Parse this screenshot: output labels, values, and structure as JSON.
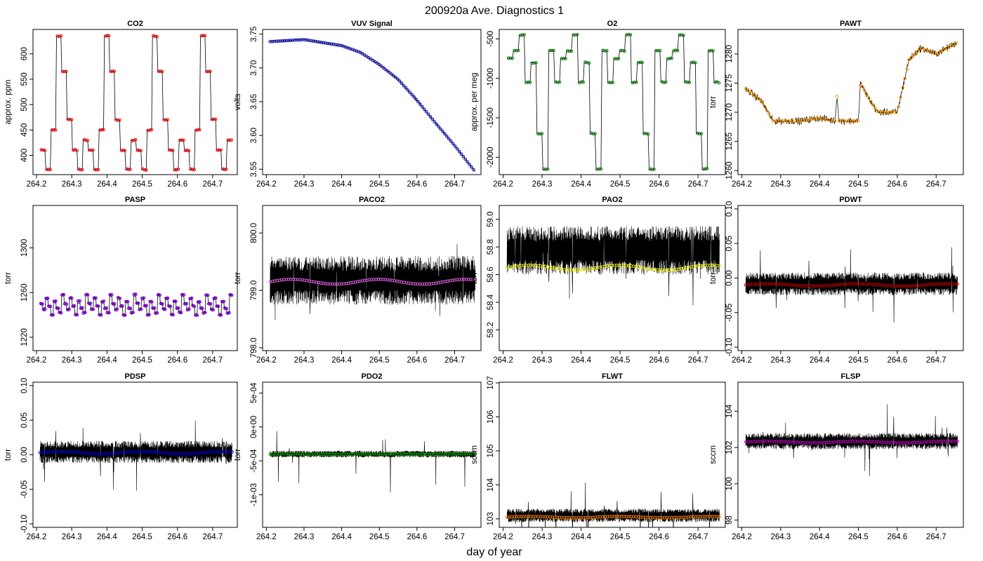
{
  "page": {
    "title": "200920a   Ave. Diagnostics 1",
    "xlabel": "day of year"
  },
  "chart_data": [
    {
      "type": "line",
      "title": "CO2",
      "ylabel": "approx. ppm",
      "xlim": [
        264.19,
        264.77
      ],
      "ylim": [
        362,
        648
      ],
      "xticks": [
        264.2,
        264.3,
        264.4,
        264.5,
        264.6,
        264.7
      ],
      "xtick_labels": [
        "264.2",
        "264.3",
        "264.4",
        "264.5",
        "264.6",
        "264.7"
      ],
      "yticks": [
        400,
        450,
        500,
        550,
        600
      ],
      "ytick_labels": [
        "400",
        "450",
        "500",
        "550",
        "600"
      ],
      "marker_color": "#e00000",
      "pattern": "steps",
      "cycle_levels": [
        410,
        372,
        450,
        635,
        565,
        470,
        410,
        372,
        430
      ],
      "x_range": [
        264.21,
        264.755
      ],
      "cycles": 4
    },
    {
      "type": "line",
      "title": "VUV Signal",
      "ylabel": "volts",
      "xlim": [
        264.19,
        264.77
      ],
      "ylim": [
        3.542,
        3.757
      ],
      "xticks": [
        264.2,
        264.3,
        264.4,
        264.5,
        264.6,
        264.7
      ],
      "xtick_labels": [
        "264.2",
        "264.3",
        "264.4",
        "264.5",
        "264.6",
        "264.7"
      ],
      "yticks": [
        3.55,
        3.6,
        3.65,
        3.7,
        3.75
      ],
      "ytick_labels": [
        "3.55",
        "3.60",
        "3.65",
        "3.70",
        "3.75"
      ],
      "marker_color": "#0000b0",
      "pattern": "curve",
      "curve_points": [
        [
          264.21,
          3.739
        ],
        [
          264.3,
          3.742
        ],
        [
          264.4,
          3.733
        ],
        [
          264.45,
          3.723
        ],
        [
          264.5,
          3.705
        ],
        [
          264.55,
          3.683
        ],
        [
          264.6,
          3.652
        ],
        [
          264.65,
          3.618
        ],
        [
          264.7,
          3.585
        ],
        [
          264.755,
          3.546
        ]
      ],
      "x_range": [
        264.21,
        264.755
      ]
    },
    {
      "type": "line",
      "title": "O2",
      "ylabel": "approx. per meg",
      "xlim": [
        264.19,
        264.77
      ],
      "ylim": [
        -2220,
        -380
      ],
      "xticks": [
        264.2,
        264.3,
        264.4,
        264.5,
        264.6,
        264.7
      ],
      "xtick_labels": [
        "264.2",
        "264.3",
        "264.4",
        "264.5",
        "264.6",
        "264.7"
      ],
      "yticks": [
        -2000,
        -1500,
        -1000,
        -500
      ],
      "ytick_labels": [
        "-2000",
        "-1500",
        "-1000",
        "-500"
      ],
      "marker_color": "#007000",
      "pattern": "steps",
      "cycle_levels": [
        -750,
        -650,
        -450,
        -1050,
        -800,
        -1700,
        -2150,
        -650,
        -1050
      ],
      "x_range": [
        264.21,
        264.755
      ],
      "cycles": 4
    },
    {
      "type": "line",
      "title": "PAWT",
      "ylabel": "torr",
      "xlim": [
        264.19,
        264.77
      ],
      "ylim": [
        1259.3,
        1284.2
      ],
      "xticks": [
        264.2,
        264.3,
        264.4,
        264.5,
        264.6,
        264.7
      ],
      "xtick_labels": [
        "264.2",
        "264.3",
        "264.4",
        "264.5",
        "264.6",
        "264.7"
      ],
      "yticks": [
        1260,
        1265,
        1270,
        1275,
        1280
      ],
      "ytick_labels": [
        "1260",
        "1265",
        "1270",
        "1275",
        "1280"
      ],
      "marker_color": "#ff9900",
      "pattern": "curve",
      "curve_points": [
        [
          264.21,
          1274
        ],
        [
          264.25,
          1272
        ],
        [
          264.28,
          1268.5
        ],
        [
          264.35,
          1268.5
        ],
        [
          264.4,
          1269
        ],
        [
          264.44,
          1268.5
        ],
        [
          264.445,
          1273
        ],
        [
          264.45,
          1268.5
        ],
        [
          264.5,
          1268.5
        ],
        [
          264.505,
          1275
        ],
        [
          264.53,
          1272
        ],
        [
          264.55,
          1270
        ],
        [
          264.6,
          1270
        ],
        [
          264.62,
          1276
        ],
        [
          264.63,
          1279
        ],
        [
          264.66,
          1281
        ],
        [
          264.7,
          1280
        ],
        [
          264.755,
          1282
        ]
      ],
      "x_range": [
        264.21,
        264.755
      ]
    },
    {
      "type": "line",
      "title": "PASP",
      "ylabel": "torr",
      "xlim": [
        264.19,
        264.77
      ],
      "ylim": [
        1208,
        1338
      ],
      "xticks": [
        264.2,
        264.3,
        264.4,
        264.5,
        264.6,
        264.7
      ],
      "xtick_labels": [
        "264.2",
        "264.3",
        "264.4",
        "264.5",
        "264.6",
        "264.7"
      ],
      "yticks": [
        1220,
        1260,
        1300
      ],
      "ytick_labels": [
        "1220",
        "1260",
        "1300"
      ],
      "marker_color": "#7000c0",
      "pattern": "steps",
      "cycle_levels": [
        1250,
        1245,
        1255,
        1248,
        1240,
        1252,
        1246,
        1242,
        1258
      ],
      "x_range": [
        264.21,
        264.755
      ],
      "cycles": 8
    },
    {
      "type": "line",
      "title": "PACO2",
      "ylabel": "torr",
      "xlim": [
        264.19,
        264.77
      ],
      "ylim": [
        797.95,
        800.48
      ],
      "xticks": [
        264.2,
        264.3,
        264.4,
        264.5,
        264.6,
        264.7
      ],
      "xtick_labels": [
        "264.2",
        "264.3",
        "264.4",
        "264.5",
        "264.6",
        "264.7"
      ],
      "yticks": [
        798.0,
        799.0,
        800.0
      ],
      "ytick_labels": [
        "798.0",
        "799.0",
        "800.0"
      ],
      "marker_color": "#e060e0",
      "pattern": "noise",
      "mean": 799.15,
      "band": [
        798.75,
        799.6
      ],
      "x_range": [
        264.21,
        264.755
      ]
    },
    {
      "type": "line",
      "title": "PAO2",
      "ylabel": "torr",
      "xlim": [
        264.19,
        264.77
      ],
      "ylim": [
        58.05,
        59.1
      ],
      "xticks": [
        264.2,
        264.3,
        264.4,
        264.5,
        264.6,
        264.7
      ],
      "xtick_labels": [
        "264.2",
        "264.3",
        "264.4",
        "264.5",
        "264.6",
        "264.7"
      ],
      "yticks": [
        58.2,
        58.4,
        58.6,
        58.8,
        59.0
      ],
      "ytick_labels": [
        "58.2",
        "58.4",
        "58.6",
        "58.8",
        "59.0"
      ],
      "marker_color": "#e8e800",
      "pattern": "noise",
      "mean": 58.65,
      "band": [
        58.6,
        58.95
      ],
      "x_range": [
        264.21,
        264.755
      ]
    },
    {
      "type": "line",
      "title": "PDWT",
      "ylabel": "torr",
      "xlim": [
        264.19,
        264.77
      ],
      "ylim": [
        -0.105,
        0.105
      ],
      "xticks": [
        264.2,
        264.3,
        264.4,
        264.5,
        264.6,
        264.7
      ],
      "xtick_labels": [
        "264.2",
        "264.3",
        "264.4",
        "264.5",
        "264.6",
        "264.7"
      ],
      "yticks": [
        -0.1,
        -0.05,
        0.0,
        0.05,
        0.1
      ],
      "ytick_labels": [
        "-0.10",
        "-0.05",
        "0.00",
        "0.05",
        "0.10"
      ],
      "marker_color": "#c00000",
      "pattern": "noise",
      "mean": -0.01,
      "band": [
        -0.025,
        0.008
      ],
      "x_range": [
        264.21,
        264.755
      ]
    },
    {
      "type": "line",
      "title": "PDSP",
      "ylabel": "torr",
      "xlim": [
        264.19,
        264.77
      ],
      "ylim": [
        -0.105,
        0.105
      ],
      "xticks": [
        264.2,
        264.3,
        264.4,
        264.5,
        264.6,
        264.7
      ],
      "xtick_labels": [
        "264.2",
        "264.3",
        "264.4",
        "264.5",
        "264.6",
        "264.7"
      ],
      "yticks": [
        -0.1,
        -0.05,
        0.0,
        0.05,
        0.1
      ],
      "ytick_labels": [
        "-0.10",
        "-0.05",
        "0.00",
        "0.05",
        "0.10"
      ],
      "marker_color": "#0000c0",
      "pattern": "noise",
      "mean": 0.003,
      "band": [
        -0.012,
        0.02
      ],
      "x_range": [
        264.21,
        264.755
      ]
    },
    {
      "type": "line",
      "title": "PDO2",
      "ylabel": "torr",
      "xlim": [
        264.19,
        264.77
      ],
      "ylim": [
        -0.00148,
        0.00066
      ],
      "xticks": [
        264.2,
        264.3,
        264.4,
        264.5,
        264.6,
        264.7
      ],
      "xtick_labels": [
        "264.2",
        "264.3",
        "264.4",
        "264.5",
        "264.6",
        "264.7"
      ],
      "yticks": [
        -0.001,
        -0.0005,
        0.0,
        0.0005
      ],
      "ytick_labels": [
        "-1e-03",
        "-5e-04",
        "0e+00",
        "5e-04"
      ],
      "marker_color": "#00b000",
      "pattern": "noise",
      "mean": -0.0004,
      "band": [
        -0.00045,
        -0.00035
      ],
      "x_range": [
        264.21,
        264.755
      ]
    },
    {
      "type": "line",
      "title": "FLWT",
      "ylabel": "sccm",
      "xlim": [
        264.19,
        264.77
      ],
      "ylim": [
        102.75,
        107.02
      ],
      "xticks": [
        264.2,
        264.3,
        264.4,
        264.5,
        264.6,
        264.7
      ],
      "xtick_labels": [
        "264.2",
        "264.3",
        "264.4",
        "264.5",
        "264.6",
        "264.7"
      ],
      "yticks": [
        103,
        104,
        105,
        106,
        107
      ],
      "ytick_labels": [
        "103",
        "104",
        "105",
        "106",
        "107"
      ],
      "marker_color": "#ff8000",
      "pattern": "noise",
      "mean": 103.05,
      "band": [
        102.9,
        103.3
      ],
      "x_range": [
        264.21,
        264.755
      ]
    },
    {
      "type": "line",
      "title": "FLSP",
      "ylabel": "sccm",
      "xlim": [
        264.19,
        264.77
      ],
      "ylim": [
        97.6,
        105.6
      ],
      "xticks": [
        264.2,
        264.3,
        264.4,
        264.5,
        264.6,
        264.7
      ],
      "xtick_labels": [
        "264.2",
        "264.3",
        "264.4",
        "264.5",
        "264.6",
        "264.7"
      ],
      "yticks": [
        98,
        100,
        102,
        104
      ],
      "ytick_labels": [
        "98",
        "100",
        "102",
        "104"
      ],
      "marker_color": "#c000c0",
      "pattern": "noise",
      "mean": 102.3,
      "band": [
        101.9,
        102.8
      ],
      "x_range": [
        264.21,
        264.755
      ]
    }
  ]
}
